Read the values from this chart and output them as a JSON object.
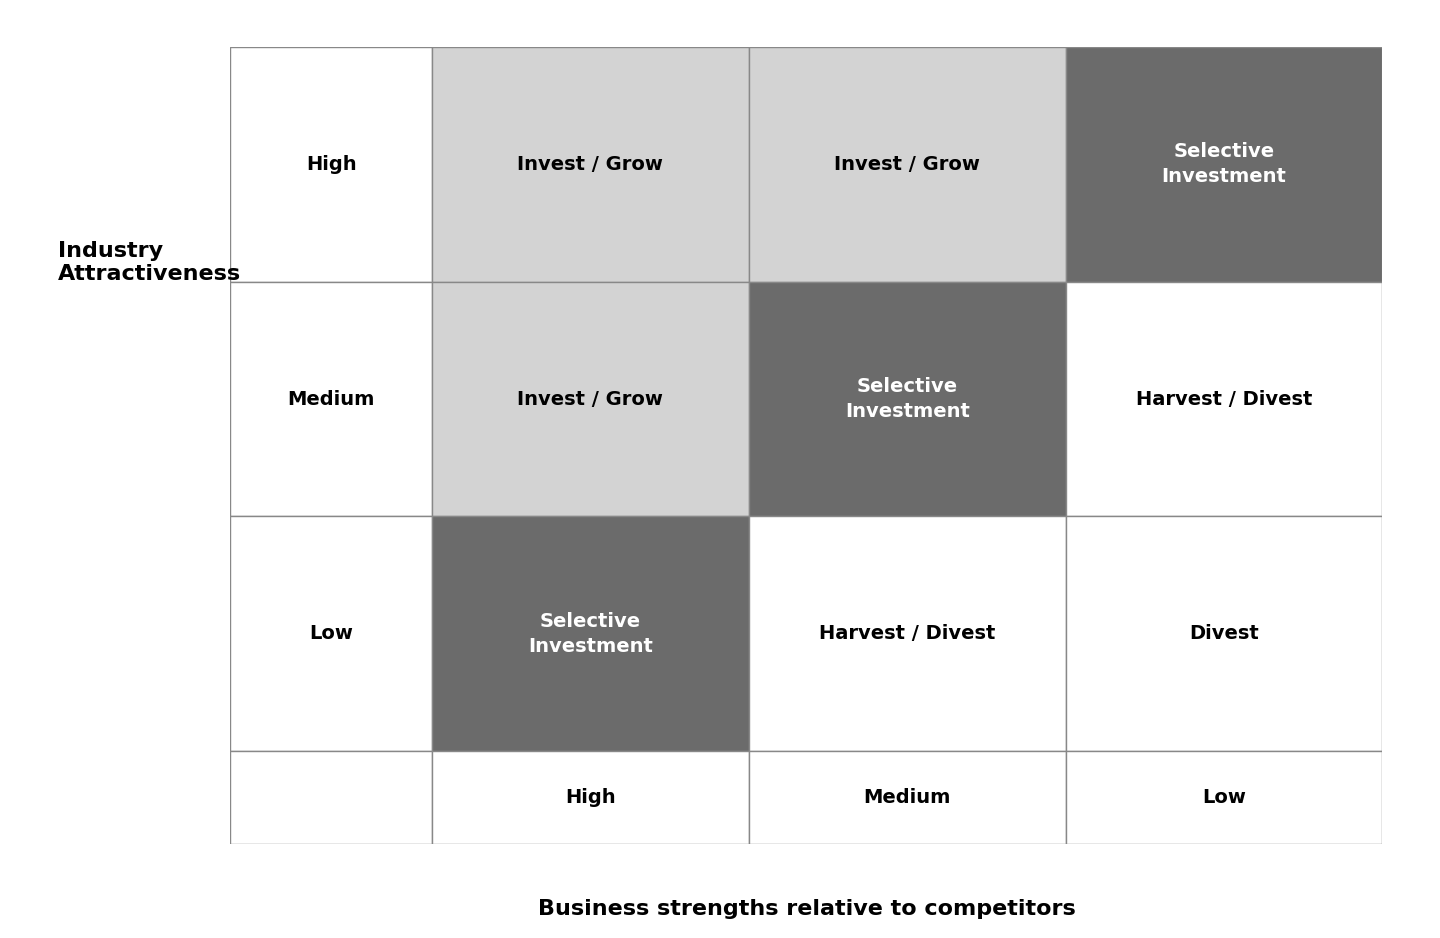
{
  "title": "Business strengths relative to competitors",
  "ylabel": "Industry\nAttractiveness",
  "background_color": "#ffffff",
  "grid_color": "#888888",
  "cell_colors": {
    "00": "#ffffff",
    "01": "#d3d3d3",
    "02": "#d3d3d3",
    "03": "#6b6b6b",
    "10": "#ffffff",
    "11": "#d3d3d3",
    "12": "#6b6b6b",
    "13": "#ffffff",
    "20": "#ffffff",
    "21": "#6b6b6b",
    "22": "#ffffff",
    "23": "#ffffff"
  },
  "cell_texts": {
    "00": "High",
    "01": "Invest / Grow",
    "02": "Invest / Grow",
    "03": "Selective\nInvestment",
    "10": "Medium",
    "11": "Invest / Grow",
    "12": "Selective\nInvestment",
    "13": "Harvest / Divest",
    "20": "Low",
    "21": "Selective\nInvestment",
    "22": "Harvest / Divest",
    "23": "Divest"
  },
  "cell_text_colors": {
    "00": "#000000",
    "01": "#000000",
    "02": "#000000",
    "03": "#ffffff",
    "10": "#000000",
    "11": "#000000",
    "12": "#ffffff",
    "13": "#000000",
    "20": "#000000",
    "21": "#ffffff",
    "22": "#000000",
    "23": "#000000"
  },
  "col_labels": [
    "",
    "High",
    "Medium",
    "Low"
  ]
}
